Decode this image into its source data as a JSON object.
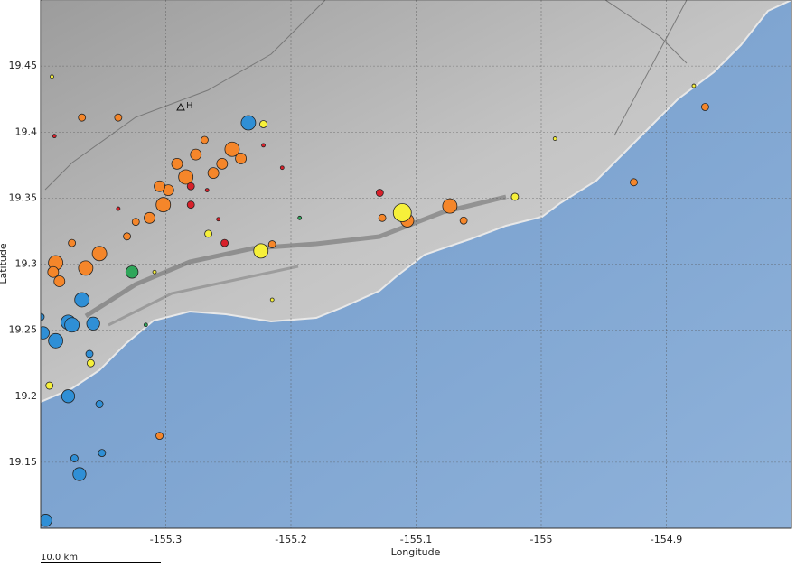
{
  "chart_data": {
    "type": "scatter",
    "x_label": "Longitude",
    "y_label": "Latitude",
    "scale_bar": "10.0 km",
    "annotation": "H",
    "xlim": [
      -155.4,
      -154.8
    ],
    "ylim": [
      19.1,
      19.5
    ],
    "xticks": [
      -155.3,
      -155.2,
      -155.1,
      -155,
      -154.9
    ],
    "yticks": [
      19.15,
      19.2,
      19.25,
      19.3,
      19.35,
      19.4,
      19.45
    ],
    "grid": true,
    "series": [
      {
        "color": "#f5862a",
        "x": [
          -155.284,
          -155.298,
          -155.302,
          -155.313,
          -155.324,
          -155.331,
          -155.276,
          -155.269,
          -155.247,
          -155.24,
          -155.255,
          -155.388,
          -155.385,
          -155.39,
          -155.364,
          -155.353,
          -155.073,
          -155.107,
          -154.926,
          -154.869,
          -155.305,
          -155.367,
          -155.338,
          -155.215,
          -155.375,
          -155.291,
          -155.305,
          -155.062,
          -155.127,
          -155.262
        ],
        "values": [
          19.366,
          19.356,
          19.345,
          19.335,
          19.332,
          19.321,
          19.383,
          19.394,
          19.387,
          19.38,
          19.376,
          19.301,
          19.287,
          19.294,
          19.297,
          19.308,
          19.344,
          19.333,
          19.362,
          19.419,
          19.17,
          19.411,
          19.411,
          19.315,
          19.316,
          19.376,
          19.359,
          19.333,
          19.335,
          19.369
        ],
        "sizes": [
          3.5,
          3,
          3.5,
          3,
          2.5,
          2.5,
          3,
          2.5,
          3.5,
          3,
          3,
          3.5,
          3,
          3,
          3.5,
          3.5,
          3.5,
          3.3,
          2.5,
          2.5,
          2.5,
          2.5,
          2.5,
          2.5,
          2.5,
          3,
          3,
          2.5,
          2.5,
          3
        ]
      },
      {
        "color": "#d8202a",
        "x": [
          -155.28,
          -155.253,
          -155.129,
          -155.222,
          -155.258,
          -155.389,
          -155.338,
          -155.28,
          -155.267,
          -155.207
        ],
        "values": [
          19.345,
          19.316,
          19.354,
          19.39,
          19.334,
          19.397,
          19.342,
          19.359,
          19.356,
          19.373
        ],
        "sizes": [
          2.5,
          2.5,
          2.5,
          2,
          2,
          2,
          2,
          2.5,
          2,
          2
        ]
      },
      {
        "color": "#f6f03a",
        "x": [
          -155.111,
          -155.224,
          -155.021,
          -155.222,
          -155.266,
          -155.391,
          -155.36,
          -154.989,
          -154.878,
          -155.215,
          -155.393,
          -155.309
        ],
        "values": [
          19.339,
          19.31,
          19.351,
          19.406,
          19.323,
          19.442,
          19.225,
          19.395,
          19.435,
          19.273,
          19.208,
          19.294
        ],
        "sizes": [
          4,
          3.5,
          2.5,
          2.5,
          2.5,
          2,
          2.5,
          2,
          2,
          2,
          2.5,
          2
        ]
      },
      {
        "color": "#2f8fd6",
        "x": [
          -155.234,
          -155.367,
          -155.378,
          -155.388,
          -155.398,
          -155.375,
          -155.358,
          -155.378,
          -155.396,
          -155.369,
          -155.353,
          -155.4,
          -155.373,
          -155.361,
          -155.351
        ],
        "values": [
          19.407,
          19.273,
          19.256,
          19.242,
          19.248,
          19.254,
          19.255,
          19.2,
          19.106,
          19.141,
          19.194,
          19.26,
          19.153,
          19.232,
          19.157
        ],
        "sizes": [
          3.5,
          3.5,
          3.5,
          3.5,
          3.2,
          3.5,
          3.3,
          3.3,
          3.2,
          3.3,
          2.5,
          2.5,
          2.5,
          2.5,
          2.5
        ]
      },
      {
        "color": "#2fa65a",
        "x": [
          -155.327,
          -155.193,
          -155.316
        ],
        "values": [
          19.294,
          19.335,
          19.254
        ],
        "sizes": [
          3.2,
          2,
          2
        ]
      }
    ]
  }
}
